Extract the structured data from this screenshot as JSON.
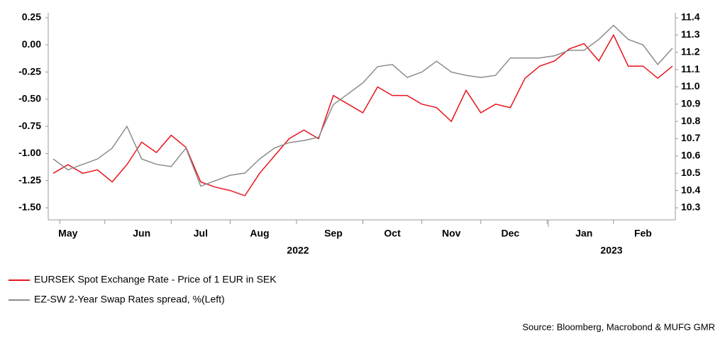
{
  "chart_data": {
    "type": "line",
    "x": [
      null,
      "May",
      null,
      null,
      null,
      null,
      "Jun",
      null,
      null,
      null,
      "Jul",
      null,
      null,
      null,
      "Aug",
      null,
      null,
      null,
      null,
      "Sep",
      null,
      null,
      null,
      "Oct",
      null,
      null,
      null,
      "Nov",
      null,
      null,
      null,
      "Dec",
      null,
      null,
      null,
      null,
      "Jan",
      null,
      null,
      null,
      "Feb",
      null,
      null
    ],
    "x_group_labels": [
      "2022",
      "2023"
    ],
    "series": [
      {
        "name": "EURSEK Spot Exchange Rate - Price of 1 EUR in SEK",
        "color": "#e8141b",
        "axis": "y2",
        "values": [
          10.5,
          10.55,
          10.5,
          10.52,
          10.45,
          10.55,
          10.68,
          10.62,
          10.72,
          10.65,
          10.45,
          10.42,
          10.4,
          10.37,
          10.5,
          10.6,
          10.7,
          10.75,
          10.7,
          10.95,
          10.9,
          10.85,
          11.0,
          10.95,
          10.95,
          10.9,
          10.88,
          10.8,
          10.98,
          10.85,
          10.9,
          10.88,
          11.05,
          11.12,
          11.15,
          11.22,
          11.25,
          11.15,
          11.3,
          11.12,
          11.12,
          11.05,
          11.12
        ]
      },
      {
        "name": "EZ-SW 2-Year Swap Rates spread, %(Left)",
        "color": "#8c8c8c",
        "values": [
          -1.05,
          -1.15,
          -1.1,
          -1.05,
          -0.95,
          -0.75,
          -1.05,
          -1.1,
          -1.12,
          -0.95,
          -1.3,
          -1.25,
          -1.2,
          -1.18,
          -1.05,
          -0.95,
          -0.9,
          -0.88,
          -0.85,
          -0.55,
          -0.45,
          -0.35,
          -0.2,
          -0.18,
          -0.3,
          -0.25,
          -0.15,
          -0.25,
          -0.28,
          -0.3,
          -0.28,
          -0.12,
          -0.12,
          -0.12,
          -0.1,
          -0.05,
          -0.05,
          0.05,
          0.18,
          0.05,
          0.0,
          -0.18,
          -0.03
        ]
      }
    ],
    "ylim": [
      -1.5,
      0.25
    ],
    "yticks": [
      {
        "value": 0.25,
        "label": "0.25"
      },
      {
        "value": 0,
        "label": "0.00"
      },
      {
        "value": -0.25,
        "label": "-0.25"
      },
      {
        "value": -0.5,
        "label": "-0.50"
      },
      {
        "value": -0.75,
        "label": "-0.75"
      },
      {
        "value": -1,
        "label": "-1.00"
      },
      {
        "value": -1.25,
        "label": "-1.25"
      },
      {
        "value": -1.5,
        "label": "-1.50"
      }
    ],
    "y2lim": [
      10.3,
      11.4
    ],
    "y2ticks": [
      11.4,
      11.3,
      11.2,
      11.1,
      {
        "value": 11,
        "label": "11.0"
      },
      10.9,
      10.8,
      10.7,
      10.6,
      10.5,
      10.4,
      10.3
    ],
    "source": "Source: Bloomberg, Macrobond & MUFG GMR"
  }
}
